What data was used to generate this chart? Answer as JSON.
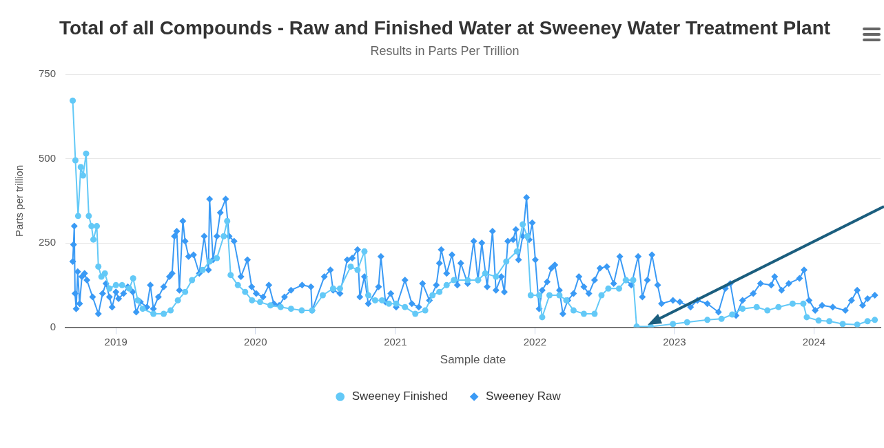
{
  "chart_data": {
    "type": "line",
    "title": "Total of all Compounds - Raw and Finished Water at Sweeney Water Treatment Plant",
    "subtitle": "Results in Parts Per Trillion",
    "xlabel": "Sample date",
    "ylabel": "Parts per trillion",
    "xlim": [
      "2018-08-22",
      "2024-06-23"
    ],
    "xticks": [
      {
        "value": "2019",
        "label": "2019"
      },
      {
        "value": "2020",
        "label": "2020"
      },
      {
        "value": "2021",
        "label": "2021"
      },
      {
        "value": "2022",
        "label": "2022"
      },
      {
        "value": "2023",
        "label": "2023"
      },
      {
        "value": "2024",
        "label": "2024"
      }
    ],
    "ylim": [
      0,
      750
    ],
    "yticks": [
      0,
      250,
      500,
      750
    ],
    "grid": "y",
    "legend": "bottom",
    "line_style": "solid",
    "series": [
      {
        "name": "Sweeney Finished",
        "color": "#63c9f7",
        "marker": "circle",
        "x": [
          "2018-09-10",
          "2018-09-17",
          "2018-09-24",
          "2018-10-01",
          "2018-10-07",
          "2018-10-15",
          "2018-10-22",
          "2018-10-29",
          "2018-11-03",
          "2018-11-12",
          "2018-11-16",
          "2018-11-24",
          "2018-12-03",
          "2018-12-15",
          "2019-01-01",
          "2019-01-17",
          "2019-02-05",
          "2019-02-15",
          "2019-02-27",
          "2019-03-12",
          "2019-04-09",
          "2019-05-06",
          "2019-05-24",
          "2019-06-12",
          "2019-07-01",
          "2019-07-19",
          "2019-08-16",
          "2019-09-03",
          "2019-09-22",
          "2019-10-10",
          "2019-10-19",
          "2019-10-28",
          "2019-11-16",
          "2019-12-05",
          "2019-12-23",
          "2020-01-13",
          "2020-02-09",
          "2020-03-07",
          "2020-04-03",
          "2020-05-01",
          "2020-05-28",
          "2020-06-25",
          "2020-07-22",
          "2020-08-09",
          "2020-09-06",
          "2020-09-24",
          "2020-10-12",
          "2020-10-22",
          "2020-11-09",
          "2020-11-27",
          "2020-12-15",
          "2021-01-03",
          "2021-01-26",
          "2021-02-22",
          "2021-03-20",
          "2021-04-08",
          "2021-04-26",
          "2021-05-15",
          "2021-06-03",
          "2021-07-09",
          "2021-08-05",
          "2021-08-24",
          "2021-09-21",
          "2021-10-18",
          "2021-11-15",
          "2021-11-30",
          "2021-12-12",
          "2021-12-21",
          "2022-01-12",
          "2022-01-20",
          "2022-02-08",
          "2022-03-06",
          "2022-03-24",
          "2022-04-12",
          "2022-05-09",
          "2022-06-06",
          "2022-06-24",
          "2022-07-12",
          "2022-08-09",
          "2022-08-27",
          "2022-09-15",
          "2022-09-24",
          "2022-10-31",
          "2022-12-28",
          "2023-02-03",
          "2023-03-28",
          "2023-05-04",
          "2023-06-01",
          "2023-06-28",
          "2023-08-04",
          "2023-09-01",
          "2023-09-30",
          "2023-11-06",
          "2023-12-04",
          "2023-12-13",
          "2024-01-13",
          "2024-02-10",
          "2024-03-16",
          "2024-04-23",
          "2024-05-20",
          "2024-06-08"
        ],
        "values": [
          672,
          495,
          330,
          475,
          450,
          515,
          330,
          300,
          260,
          300,
          180,
          150,
          160,
          115,
          125,
          125,
          115,
          145,
          80,
          55,
          40,
          40,
          50,
          80,
          105,
          140,
          170,
          195,
          205,
          270,
          315,
          155,
          125,
          105,
          80,
          75,
          65,
          60,
          55,
          50,
          50,
          95,
          115,
          115,
          180,
          170,
          225,
          95,
          80,
          80,
          70,
          70,
          60,
          40,
          50,
          95,
          105,
          125,
          140,
          140,
          140,
          160,
          150,
          195,
          225,
          305,
          270,
          95,
          95,
          30,
          95,
          95,
          80,
          50,
          40,
          40,
          95,
          115,
          115,
          140,
          140,
          2,
          2,
          10,
          15,
          22,
          25,
          38,
          55,
          60,
          50,
          60,
          70,
          70,
          30,
          20,
          18,
          10,
          8,
          18,
          22
        ]
      },
      {
        "name": "Sweeney Raw",
        "color": "#3a9af5",
        "marker": "diamond",
        "x": [
          "2018-09-10",
          "2018-09-12",
          "2018-09-14",
          "2018-09-16",
          "2018-09-19",
          "2018-09-23",
          "2018-09-28",
          "2018-10-04",
          "2018-10-11",
          "2018-10-17",
          "2018-11-01",
          "2018-11-16",
          "2018-11-27",
          "2018-12-06",
          "2018-12-15",
          "2018-12-22",
          "2019-01-01",
          "2019-01-08",
          "2019-01-21",
          "2019-02-01",
          "2019-02-14",
          "2019-02-23",
          "2019-03-06",
          "2019-03-23",
          "2019-04-01",
          "2019-04-09",
          "2019-04-22",
          "2019-05-06",
          "2019-05-21",
          "2019-05-28",
          "2019-06-03",
          "2019-06-09",
          "2019-06-16",
          "2019-06-25",
          "2019-07-01",
          "2019-07-10",
          "2019-07-23",
          "2019-08-07",
          "2019-08-20",
          "2019-08-31",
          "2019-09-03",
          "2019-09-12",
          "2019-09-22",
          "2019-10-01",
          "2019-10-15",
          "2019-10-24",
          "2019-11-06",
          "2019-11-24",
          "2019-12-11",
          "2019-12-22",
          "2020-01-03",
          "2020-01-21",
          "2020-02-05",
          "2020-02-18",
          "2020-03-03",
          "2020-03-17",
          "2020-04-03",
          "2020-05-02",
          "2020-05-25",
          "2020-05-28",
          "2020-06-29",
          "2020-07-15",
          "2020-07-22",
          "2020-08-09",
          "2020-08-28",
          "2020-09-10",
          "2020-09-24",
          "2020-09-30",
          "2020-10-12",
          "2020-10-22",
          "2020-11-18",
          "2020-11-24",
          "2020-12-06",
          "2020-12-20",
          "2021-01-03",
          "2021-01-26",
          "2021-02-13",
          "2021-03-03",
          "2021-03-13",
          "2021-03-31",
          "2021-04-18",
          "2021-04-26",
          "2021-05-01",
          "2021-05-15",
          "2021-05-29",
          "2021-06-12",
          "2021-06-21",
          "2021-07-09",
          "2021-07-25",
          "2021-08-05",
          "2021-08-15",
          "2021-08-29",
          "2021-09-12",
          "2021-09-21",
          "2021-10-05",
          "2021-10-13",
          "2021-10-22",
          "2021-11-05",
          "2021-11-12",
          "2021-11-19",
          "2021-11-30",
          "2021-12-10",
          "2021-12-17",
          "2021-12-25",
          "2022-01-02",
          "2022-01-12",
          "2022-01-20",
          "2022-02-02",
          "2022-02-13",
          "2022-02-22",
          "2022-03-06",
          "2022-03-15",
          "2022-03-28",
          "2022-04-12",
          "2022-04-26",
          "2022-05-09",
          "2022-05-22",
          "2022-06-06",
          "2022-06-20",
          "2022-07-08",
          "2022-07-26",
          "2022-08-11",
          "2022-08-27",
          "2022-09-10",
          "2022-09-28",
          "2022-10-09",
          "2022-10-22",
          "2022-11-03",
          "2022-11-18",
          "2022-11-28",
          "2022-12-28",
          "2023-01-15",
          "2023-02-12",
          "2023-03-02",
          "2023-03-28",
          "2023-04-26",
          "2023-05-14",
          "2023-05-27",
          "2023-06-11",
          "2023-06-28",
          "2023-07-26",
          "2023-08-14",
          "2023-09-11",
          "2023-09-20",
          "2023-10-08",
          "2023-10-27",
          "2023-11-24",
          "2023-12-06",
          "2023-12-19",
          "2024-01-04",
          "2024-01-22",
          "2024-02-19",
          "2024-03-23",
          "2024-04-08",
          "2024-04-23",
          "2024-05-07",
          "2024-05-20",
          "2024-06-08"
        ],
        "values": [
          195,
          245,
          300,
          100,
          55,
          165,
          70,
          150,
          160,
          140,
          90,
          40,
          100,
          130,
          90,
          60,
          105,
          85,
          100,
          120,
          105,
          45,
          75,
          60,
          125,
          55,
          90,
          120,
          150,
          160,
          270,
          285,
          110,
          315,
          255,
          210,
          215,
          160,
          270,
          170,
          380,
          200,
          270,
          340,
          380,
          270,
          255,
          150,
          200,
          120,
          100,
          90,
          125,
          70,
          65,
          90,
          110,
          125,
          120,
          50,
          150,
          170,
          110,
          100,
          200,
          205,
          230,
          90,
          150,
          70,
          120,
          210,
          75,
          100,
          60,
          140,
          70,
          60,
          130,
          80,
          125,
          190,
          230,
          160,
          215,
          125,
          190,
          130,
          255,
          140,
          250,
          120,
          285,
          110,
          150,
          105,
          255,
          260,
          290,
          200,
          270,
          385,
          260,
          310,
          200,
          55,
          110,
          135,
          175,
          185,
          110,
          40,
          80,
          100,
          150,
          120,
          100,
          140,
          175,
          180,
          130,
          210,
          140,
          125,
          210,
          90,
          140,
          215,
          125,
          70,
          80,
          75,
          60,
          80,
          70,
          45,
          115,
          130,
          35,
          80,
          100,
          130,
          125,
          150,
          110,
          130,
          145,
          170,
          80,
          50,
          65,
          60,
          50,
          80,
          110,
          65,
          85,
          95
        ]
      }
    ]
  }
}
